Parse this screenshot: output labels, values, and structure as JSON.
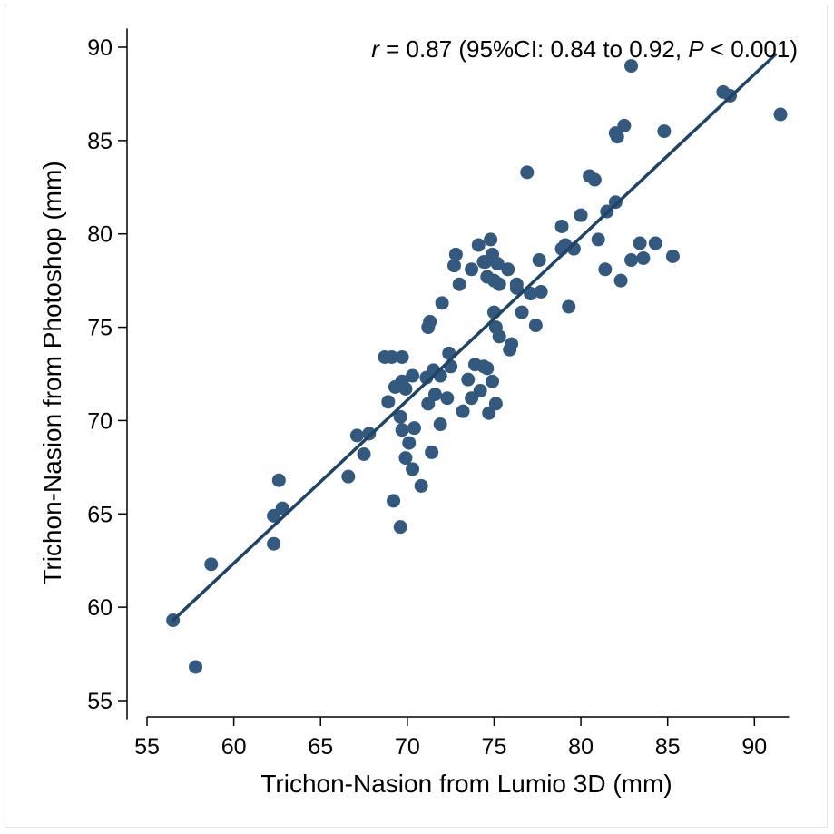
{
  "chart_data": {
    "type": "scatter",
    "xlabel": "Trichon-Nasion from Lumio 3D (mm)",
    "ylabel": "Trichon-Nasion from Photoshop (mm)",
    "xlim": [
      55,
      92
    ],
    "ylim": [
      54,
      91
    ],
    "xticks": [
      55,
      60,
      65,
      70,
      75,
      80,
      85,
      90
    ],
    "yticks": [
      55,
      60,
      65,
      70,
      75,
      80,
      85,
      90
    ],
    "annotation": {
      "r_symbol": "r",
      "r_text": " = 0.87 (95%CI: 0.84 to 0.92, ",
      "p_symbol": "P",
      "p_text": " < 0.001)"
    },
    "fit_line": {
      "x": [
        56.5,
        91.2
      ],
      "y": [
        59.3,
        89.6
      ]
    },
    "marker_color": "#33597e",
    "line_color": "#1f4466",
    "points": [
      [
        56.5,
        59.3
      ],
      [
        57.8,
        56.8
      ],
      [
        58.7,
        62.3
      ],
      [
        62.3,
        63.4
      ],
      [
        62.3,
        64.9
      ],
      [
        62.6,
        66.8
      ],
      [
        62.8,
        65.3
      ],
      [
        66.6,
        67.0
      ],
      [
        67.1,
        69.2
      ],
      [
        67.5,
        68.2
      ],
      [
        67.8,
        69.3
      ],
      [
        68.7,
        73.4
      ],
      [
        68.9,
        71.0
      ],
      [
        69.1,
        73.4
      ],
      [
        69.2,
        65.7
      ],
      [
        69.3,
        71.8
      ],
      [
        69.6,
        64.3
      ],
      [
        69.6,
        70.2
      ],
      [
        69.7,
        73.4
      ],
      [
        69.7,
        72.1
      ],
      [
        69.7,
        69.5
      ],
      [
        69.9,
        68.0
      ],
      [
        69.9,
        71.7
      ],
      [
        70.1,
        68.8
      ],
      [
        70.3,
        72.4
      ],
      [
        70.3,
        67.4
      ],
      [
        70.4,
        69.6
      ],
      [
        70.8,
        66.5
      ],
      [
        71.1,
        72.3
      ],
      [
        71.2,
        70.9
      ],
      [
        71.2,
        75.0
      ],
      [
        71.3,
        75.3
      ],
      [
        71.4,
        68.3
      ],
      [
        71.5,
        72.7
      ],
      [
        71.6,
        71.4
      ],
      [
        71.9,
        69.8
      ],
      [
        71.9,
        72.4
      ],
      [
        72.0,
        76.3
      ],
      [
        72.3,
        71.2
      ],
      [
        72.4,
        73.6
      ],
      [
        72.5,
        72.9
      ],
      [
        72.7,
        78.3
      ],
      [
        72.8,
        78.9
      ],
      [
        73.0,
        77.3
      ],
      [
        73.2,
        70.5
      ],
      [
        73.5,
        72.2
      ],
      [
        73.7,
        71.2
      ],
      [
        73.7,
        78.1
      ],
      [
        73.9,
        73.0
      ],
      [
        74.1,
        79.4
      ],
      [
        74.2,
        71.6
      ],
      [
        74.4,
        78.5
      ],
      [
        74.4,
        72.9
      ],
      [
        74.5,
        78.5
      ],
      [
        74.6,
        77.7
      ],
      [
        74.6,
        72.8
      ],
      [
        74.7,
        70.4
      ],
      [
        74.8,
        79.7
      ],
      [
        74.9,
        72.1
      ],
      [
        74.9,
        78.9
      ],
      [
        75.0,
        75.8
      ],
      [
        75.0,
        77.5
      ],
      [
        75.1,
        75.0
      ],
      [
        75.1,
        70.9
      ],
      [
        75.2,
        78.4
      ],
      [
        75.3,
        74.5
      ],
      [
        75.3,
        77.3
      ],
      [
        75.8,
        78.1
      ],
      [
        75.9,
        73.8
      ],
      [
        76.0,
        74.1
      ],
      [
        76.3,
        77.3
      ],
      [
        76.3,
        77.1
      ],
      [
        76.6,
        75.8
      ],
      [
        76.9,
        83.3
      ],
      [
        77.1,
        76.8
      ],
      [
        77.4,
        75.1
      ],
      [
        77.6,
        78.6
      ],
      [
        77.7,
        76.9
      ],
      [
        78.9,
        80.4
      ],
      [
        78.9,
        79.2
      ],
      [
        79.1,
        79.4
      ],
      [
        79.3,
        76.1
      ],
      [
        79.6,
        79.2
      ],
      [
        80.0,
        81.0
      ],
      [
        80.5,
        83.1
      ],
      [
        80.8,
        82.9
      ],
      [
        81.0,
        79.7
      ],
      [
        81.4,
        78.1
      ],
      [
        81.5,
        81.2
      ],
      [
        82.0,
        81.7
      ],
      [
        82.0,
        85.4
      ],
      [
        82.1,
        85.2
      ],
      [
        82.3,
        77.5
      ],
      [
        82.5,
        85.8
      ],
      [
        82.9,
        89.0
      ],
      [
        82.9,
        78.6
      ],
      [
        83.4,
        79.5
      ],
      [
        83.6,
        78.7
      ],
      [
        84.3,
        79.5
      ],
      [
        84.8,
        85.5
      ],
      [
        85.3,
        78.8
      ],
      [
        88.2,
        87.6
      ],
      [
        88.6,
        87.4
      ],
      [
        91.5,
        86.4
      ]
    ]
  }
}
